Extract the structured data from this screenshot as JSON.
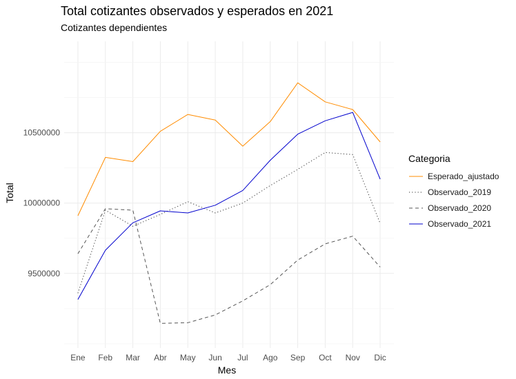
{
  "chart_data": {
    "type": "line",
    "title": "Total cotizantes observados y esperados en 2021",
    "subtitle": "Cotizantes dependientes",
    "xlabel": "Mes",
    "ylabel": "Total",
    "categories": [
      "Ene",
      "Feb",
      "Mar",
      "Abr",
      "May",
      "Jun",
      "Jul",
      "Ago",
      "Sep",
      "Oct",
      "Nov",
      "Dic"
    ],
    "ylim": [
      8970000,
      11150000
    ],
    "yticks": [
      9500000,
      10000000,
      10500000
    ],
    "ytick_labels": [
      "9500000",
      "10000000",
      "10500000"
    ],
    "grid": true,
    "legend_title": "Categoria",
    "legend_position": "right",
    "series": [
      {
        "name": "Esperado_ajustado",
        "color": "#FF8C00",
        "style": "solid",
        "values": [
          9910000,
          10325000,
          10295000,
          10510000,
          10630000,
          10590000,
          10405000,
          10580000,
          10855000,
          10720000,
          10665000,
          10435000
        ]
      },
      {
        "name": "Observado_2019",
        "color": "#333333",
        "style": "dotted",
        "values": [
          9360000,
          9950000,
          9835000,
          9920000,
          10010000,
          9930000,
          10000000,
          10125000,
          10240000,
          10360000,
          10345000,
          9855000
        ]
      },
      {
        "name": "Observado_2020",
        "color": "#555555",
        "style": "dashed",
        "values": [
          9640000,
          9960000,
          9950000,
          9145000,
          9150000,
          9205000,
          9305000,
          9420000,
          9595000,
          9710000,
          9765000,
          9545000
        ]
      },
      {
        "name": "Observado_2021",
        "color": "#0000CD",
        "style": "solid",
        "values": [
          9315000,
          9665000,
          9860000,
          9945000,
          9930000,
          9985000,
          10090000,
          10305000,
          10490000,
          10585000,
          10645000,
          10170000
        ]
      }
    ]
  }
}
